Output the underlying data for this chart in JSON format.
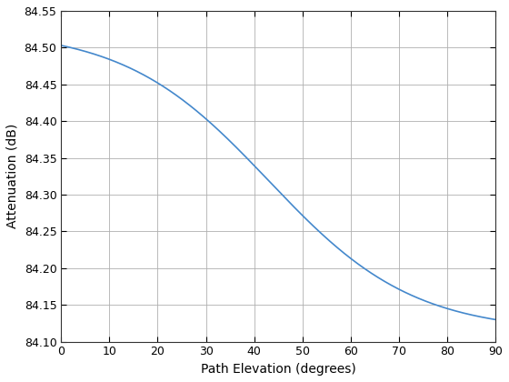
{
  "xlabel": "Path Elevation (degrees)",
  "ylabel": "Attenuation (dB)",
  "xlim": [
    0,
    90
  ],
  "ylim": [
    84.1,
    84.55
  ],
  "xticks": [
    0,
    10,
    20,
    30,
    40,
    50,
    60,
    70,
    80,
    90
  ],
  "yticks": [
    84.1,
    84.15,
    84.2,
    84.25,
    84.3,
    84.35,
    84.4,
    84.45,
    84.5,
    84.55
  ],
  "line_color": "#4488CC",
  "line_width": 1.2,
  "background_color": "#ffffff",
  "grid_color": "#b0b0b0",
  "val_at_0": 84.503,
  "val_at_90": 84.13,
  "inflection": 43,
  "scale": 15
}
